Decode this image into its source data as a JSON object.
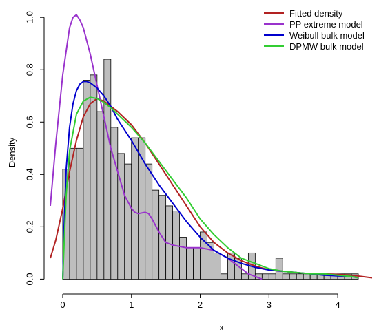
{
  "chart_data": {
    "type": "bar",
    "title": "",
    "xlabel": "x",
    "ylabel": "Density",
    "xlim": [
      -0.18,
      4.52
    ],
    "ylim": [
      -0.02,
      1.04
    ],
    "xticks": [
      "0",
      "1",
      "2",
      "3",
      "4"
    ],
    "yticks": [
      "0.0",
      "0.2",
      "0.4",
      "0.6",
      "0.8",
      "1.0"
    ],
    "grid": false,
    "legend_position": "top-right",
    "histogram": {
      "bin_width": 0.1,
      "bin_starts": [
        0.0,
        0.1,
        0.2,
        0.3,
        0.4,
        0.5,
        0.6,
        0.7,
        0.8,
        0.9,
        1.0,
        1.1,
        1.2,
        1.3,
        1.4,
        1.5,
        1.6,
        1.7,
        1.8,
        1.9,
        2.0,
        2.1,
        2.2,
        2.3,
        2.4,
        2.5,
        2.6,
        2.7,
        2.8,
        2.9,
        3.0,
        3.1,
        3.2,
        3.3,
        3.4,
        3.5,
        3.6,
        3.7,
        3.8,
        3.9,
        4.0,
        4.1,
        4.2
      ],
      "densities": [
        0.42,
        0.5,
        0.5,
        0.76,
        0.78,
        0.64,
        0.84,
        0.58,
        0.48,
        0.44,
        0.54,
        0.54,
        0.44,
        0.34,
        0.32,
        0.28,
        0.26,
        0.16,
        0.12,
        0.12,
        0.18,
        0.14,
        0.1,
        0.02,
        0.1,
        0.08,
        0.02,
        0.1,
        0.02,
        0.02,
        0.02,
        0.08,
        0.02,
        0.02,
        0.02,
        0.02,
        0.02,
        0.02,
        0.02,
        0.02,
        0.02,
        0.02,
        0.02
      ],
      "fill": "#bebebe"
    },
    "series": [
      {
        "name": "Fitted density",
        "color": "#b22222",
        "x": [
          -0.18,
          -0.1,
          0.0,
          0.1,
          0.2,
          0.3,
          0.4,
          0.5,
          0.6,
          0.7,
          0.8,
          1.0,
          1.2,
          1.4,
          1.6,
          1.8,
          2.0,
          2.2,
          2.4,
          2.6,
          2.8,
          3.0,
          3.2,
          3.4,
          3.6,
          3.8,
          4.0,
          4.2,
          4.5
        ],
        "y": [
          0.08,
          0.15,
          0.27,
          0.41,
          0.53,
          0.62,
          0.67,
          0.69,
          0.68,
          0.66,
          0.64,
          0.59,
          0.52,
          0.44,
          0.36,
          0.28,
          0.2,
          0.14,
          0.1,
          0.07,
          0.05,
          0.035,
          0.03,
          0.025,
          0.02,
          0.02,
          0.018,
          0.015,
          0.005
        ]
      },
      {
        "name": "PP extreme model",
        "color": "#9932cc",
        "x": [
          -0.18,
          -0.1,
          0.0,
          0.1,
          0.15,
          0.2,
          0.25,
          0.3,
          0.4,
          0.5,
          0.6,
          0.7,
          0.8,
          0.9,
          1.0,
          1.05,
          1.1,
          1.2,
          1.25,
          1.3,
          1.4,
          1.5,
          1.6,
          1.7,
          1.8,
          2.0,
          2.2,
          2.4,
          2.5,
          2.6,
          2.7,
          2.8,
          2.9
        ],
        "y": [
          0.28,
          0.52,
          0.78,
          0.96,
          1.0,
          1.01,
          0.99,
          0.96,
          0.86,
          0.74,
          0.62,
          0.5,
          0.41,
          0.32,
          0.27,
          0.255,
          0.25,
          0.255,
          0.25,
          0.23,
          0.18,
          0.14,
          0.13,
          0.125,
          0.12,
          0.12,
          0.11,
          0.08,
          0.06,
          0.04,
          0.02,
          0.01,
          0.0
        ]
      },
      {
        "name": "Weibull bulk model",
        "color": "#0000cd",
        "x": [
          0.0,
          0.02,
          0.05,
          0.1,
          0.15,
          0.2,
          0.25,
          0.3,
          0.35,
          0.4,
          0.5,
          0.6,
          0.7,
          0.8,
          1.0,
          1.2,
          1.4,
          1.6,
          1.8,
          2.0,
          2.2,
          2.4,
          2.6,
          2.8,
          3.0,
          3.2,
          3.4,
          3.6,
          3.8,
          4.0,
          4.2,
          4.3
        ],
        "y": [
          0.0,
          0.2,
          0.42,
          0.58,
          0.67,
          0.72,
          0.745,
          0.755,
          0.755,
          0.75,
          0.73,
          0.7,
          0.66,
          0.61,
          0.53,
          0.44,
          0.36,
          0.29,
          0.22,
          0.16,
          0.11,
          0.08,
          0.06,
          0.045,
          0.035,
          0.03,
          0.025,
          0.02,
          0.015,
          0.012,
          0.01,
          0.005
        ]
      },
      {
        "name": "DPMW bulk model",
        "color": "#32cd32",
        "x": [
          0.0,
          0.03,
          0.05,
          0.1,
          0.2,
          0.3,
          0.4,
          0.5,
          0.6,
          0.7,
          0.8,
          1.0,
          1.2,
          1.4,
          1.6,
          1.8,
          2.0,
          2.2,
          2.4,
          2.6,
          2.8,
          3.0,
          3.2,
          3.4,
          3.6,
          3.8,
          4.0,
          4.2,
          4.3
        ],
        "y": [
          0.0,
          0.2,
          0.32,
          0.49,
          0.63,
          0.68,
          0.695,
          0.69,
          0.675,
          0.655,
          0.63,
          0.58,
          0.52,
          0.45,
          0.38,
          0.31,
          0.23,
          0.17,
          0.12,
          0.08,
          0.06,
          0.04,
          0.03,
          0.025,
          0.02,
          0.02,
          0.015,
          0.01,
          0.005
        ]
      }
    ]
  }
}
